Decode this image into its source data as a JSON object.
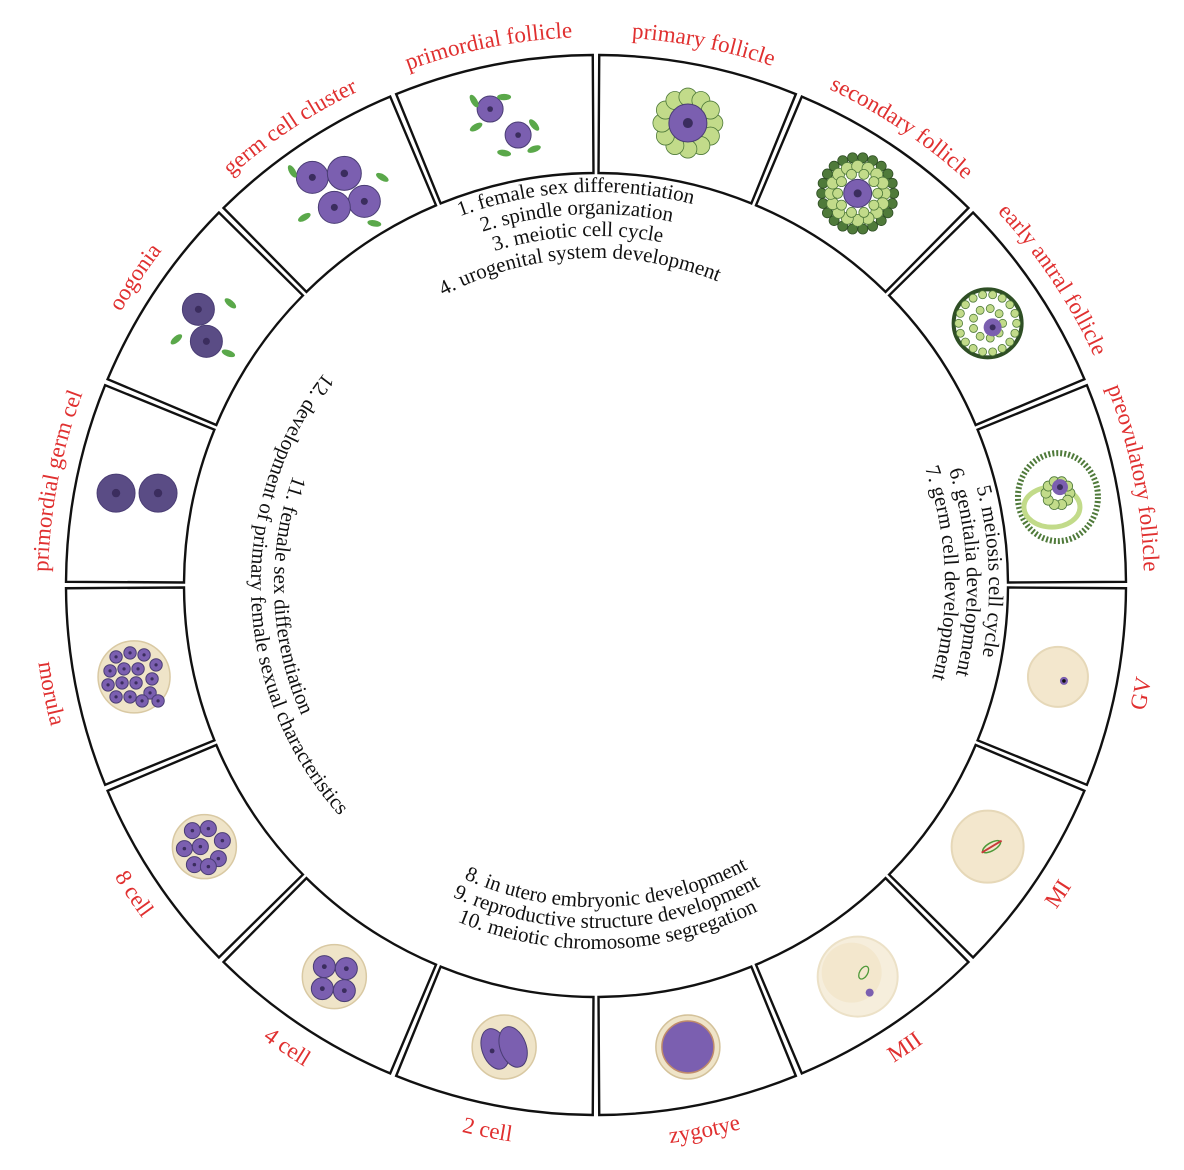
{
  "colors": {
    "label": "#e03030",
    "text": "#111111",
    "germ_dark": "#5a4c85",
    "germ_violet": "#7b5fb0",
    "nucleus": "#3b2d5e",
    "granulosa_light": "#c2db8a",
    "granulosa_dark": "#4f7a3a",
    "somatic_green": "#5aa84a",
    "zona_cream": "#efe4c8",
    "cytoplasm_cream": "#f3e7cd"
  },
  "stages": [
    {
      "label": "primordial germ cell",
      "icon": "primordial-germ-cell-icon"
    },
    {
      "label": "oogonia",
      "icon": "oogonia-icon"
    },
    {
      "label": "germ cell cluster",
      "icon": "germ-cell-cluster-icon"
    },
    {
      "label": "primordial follicle",
      "icon": "primordial-follicle-icon"
    },
    {
      "label": "primary follicle",
      "icon": "primary-follicle-icon"
    },
    {
      "label": "secondary follicle",
      "icon": "secondary-follicle-icon"
    },
    {
      "label": "early antral follicle",
      "icon": "early-antral-follicle-icon"
    },
    {
      "label": "preovulatory follicle",
      "icon": "preovulatory-follicle-icon"
    },
    {
      "label": "GV",
      "icon": "gv-oocyte-icon"
    },
    {
      "label": "MI",
      "icon": "mi-oocyte-icon"
    },
    {
      "label": "MII",
      "icon": "mii-oocyte-icon"
    },
    {
      "label": "zygotye",
      "icon": "zygote-icon"
    },
    {
      "label": "2 cell",
      "icon": "two-cell-embryo-icon"
    },
    {
      "label": "4 cell",
      "icon": "four-cell-embryo-icon"
    },
    {
      "label": "8 cell",
      "icon": "eight-cell-embryo-icon"
    },
    {
      "label": "morula",
      "icon": "morula-icon"
    }
  ],
  "term_groups": [
    {
      "lines": [
        "1. female sex differentiation",
        "2. spindle organization",
        "3. meiotic cell cycle",
        "4. urogenital system development"
      ]
    },
    {
      "lines": [
        "5. meiosis cell cycle",
        "6. genitalia development",
        "7. germ cell development"
      ]
    },
    {
      "lines": [
        "8. in utero embryonic development",
        "9. reproductive structure development",
        "10. meiotic chromosome segregation"
      ]
    },
    {
      "lines": [
        "11. female sex differentiation",
        "12. development of primary female sexual characteristics"
      ]
    }
  ]
}
